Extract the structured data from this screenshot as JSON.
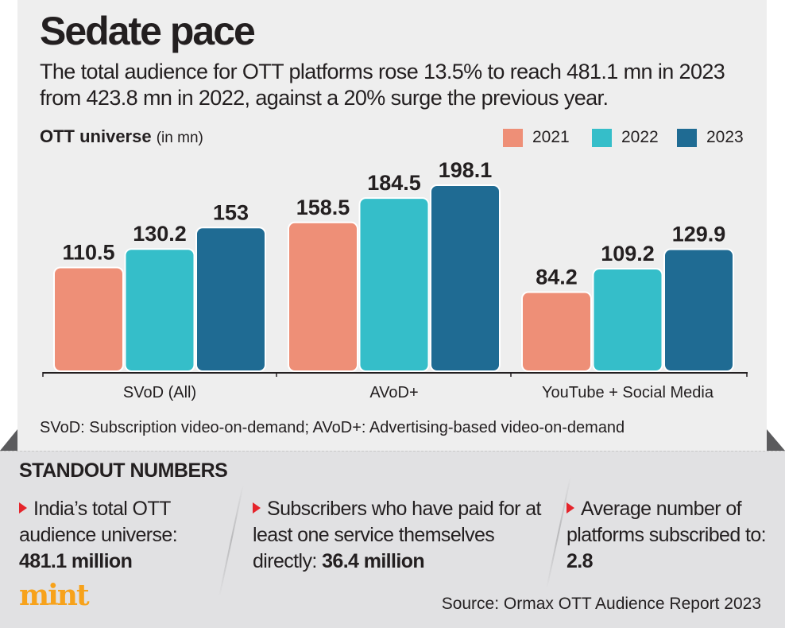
{
  "title": "Sedate pace",
  "subtitle": "The total audience for OTT platforms rose 13.5% to reach 481.1 mn in 2023 from 423.8 mn in 2022, against a 20% surge the previous year.",
  "chart_title": "OTT universe",
  "chart_unit": "(in mn)",
  "note": "SVoD: Subscription video-on-demand; AVoD+: Advertising-based video-on-demand",
  "chart_data": {
    "type": "bar",
    "title": "OTT universe",
    "ylabel": "(in mn)",
    "categories": [
      "SVoD (All)",
      "AVoD+",
      "YouTube + Social Media"
    ],
    "series": [
      {
        "name": "2021",
        "color": "#ee8f77",
        "values": [
          110.5,
          158.5,
          84.2
        ]
      },
      {
        "name": "2022",
        "color": "#35bec9",
        "values": [
          130.2,
          184.5,
          109.2
        ]
      },
      {
        "name": "2023",
        "color": "#1f6b93",
        "values": [
          153,
          198.1,
          129.9
        ]
      }
    ],
    "data_labels": [
      [
        "110.5",
        "158.5",
        "84.2"
      ],
      [
        "130.2",
        "184.5",
        "109.2"
      ],
      [
        "153",
        "198.1",
        "129.9"
      ]
    ],
    "ylim": [
      0,
      200
    ],
    "grid": false,
    "legend": "top-right"
  },
  "standout": {
    "heading": "STANDOUT NUMBERS",
    "items": [
      {
        "text": "India’s total OTT audience universe:",
        "value": "481.1 million"
      },
      {
        "text": "Subscribers who have paid for at least one service themselves directly:",
        "value": "36.4 million"
      },
      {
        "text": "Average number of platforms subscribed to:",
        "value": "2.8"
      }
    ]
  },
  "logo": "mint",
  "source": "Source: Ormax OTT Audience Report 2023"
}
